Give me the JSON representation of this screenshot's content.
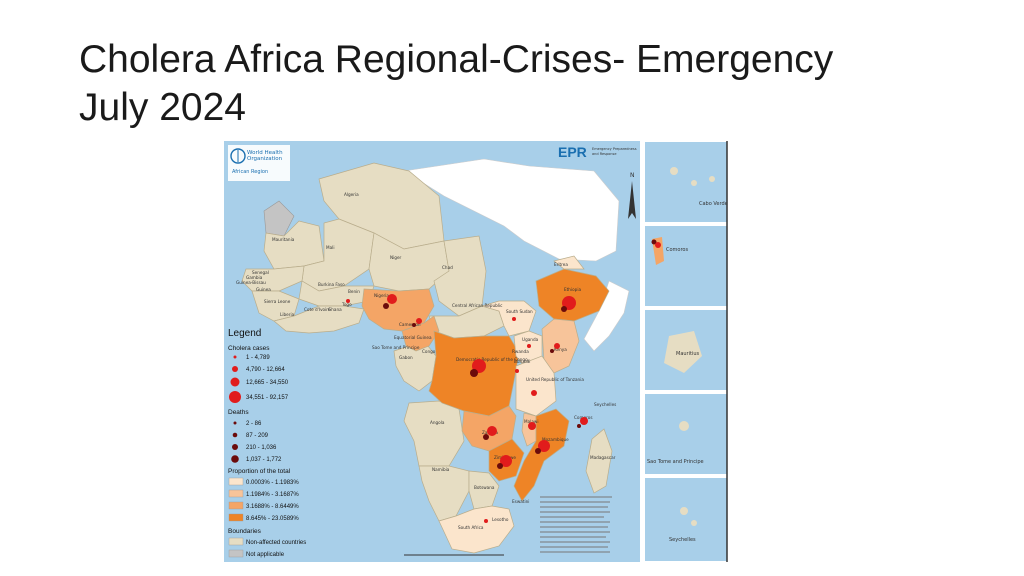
{
  "title": {
    "line1": "Cholera Africa Regional-Crises- Emergency",
    "line2": "July 2024"
  },
  "map": {
    "who_logo": {
      "line1": "World Health",
      "line2": "Organization",
      "region": "African Region"
    },
    "epr_logo": {
      "mark": "EPR",
      "line1": "Emergency Preparedness",
      "line2": "and Response"
    },
    "north_arrow": "N",
    "colors": {
      "sea": "#a8cfe9",
      "affected_1": "#fbe5cc",
      "affected_2": "#f7c49a",
      "affected_3": "#f4a566",
      "affected_4": "#ee8426",
      "non_affected": "#e6ddc3",
      "not_applicable": "#c4c4c4",
      "cases": "#e11c1c",
      "deaths": "#6b0b0b"
    },
    "country_labels": [
      {
        "name": "Algeria"
      },
      {
        "name": "Mauritania"
      },
      {
        "name": "Mali"
      },
      {
        "name": "Niger"
      },
      {
        "name": "Chad"
      },
      {
        "name": "Senegal"
      },
      {
        "name": "Gambia"
      },
      {
        "name": "Guinea-Bissau"
      },
      {
        "name": "Guinea"
      },
      {
        "name": "Burkina Faso"
      },
      {
        "name": "Benin"
      },
      {
        "name": "Sierra Leone"
      },
      {
        "name": "Liberia"
      },
      {
        "name": "Cote d'Ivoire"
      },
      {
        "name": "Ghana"
      },
      {
        "name": "Togo"
      },
      {
        "name": "Nigeria"
      },
      {
        "name": "Cameroon"
      },
      {
        "name": "Central African Republic"
      },
      {
        "name": "South Sudan"
      },
      {
        "name": "Eritrea"
      },
      {
        "name": "Ethiopia"
      },
      {
        "name": "Equatorial Guinea"
      },
      {
        "name": "Gabon"
      },
      {
        "name": "Congo"
      },
      {
        "name": "Sao Tome and Principe"
      },
      {
        "name": "Democratic Republic of the Congo"
      },
      {
        "name": "Uganda"
      },
      {
        "name": "Kenya"
      },
      {
        "name": "Rwanda"
      },
      {
        "name": "Burundi"
      },
      {
        "name": "United Republic of Tanzania"
      },
      {
        "name": "Angola"
      },
      {
        "name": "Zambia"
      },
      {
        "name": "Malawi"
      },
      {
        "name": "Mozambique"
      },
      {
        "name": "Zimbabwe"
      },
      {
        "name": "Namibia"
      },
      {
        "name": "Botswana"
      },
      {
        "name": "Eswatini"
      },
      {
        "name": "Lesotho"
      },
      {
        "name": "South Africa"
      },
      {
        "name": "Madagascar"
      },
      {
        "name": "Comoros"
      },
      {
        "name": "Seychelles"
      }
    ],
    "legend": {
      "title": "Legend",
      "cases_heading": "Cholera cases",
      "cases": [
        "1 - 4,789",
        "4,790 - 12,664",
        "12,665 - 34,550",
        "34,551 - 92,157"
      ],
      "deaths_heading": "Deaths",
      "deaths": [
        "2 - 86",
        "87 - 209",
        "210 - 1,036",
        "1,037 - 1,772"
      ],
      "proportion_heading": "Proportion of the total",
      "proportions": [
        "0.0003% - 1.1983%",
        "1.1984% - 3.1687%",
        "3.1688% - 8.6449%",
        "8.645% - 23.0589%"
      ],
      "boundaries_heading": "Boundaries",
      "boundaries": [
        "Non-affected countries",
        "Not applicable"
      ]
    },
    "insets": [
      {
        "name": "Cabo Verde"
      },
      {
        "name": "Comoros"
      },
      {
        "name": "Mauritius"
      },
      {
        "name": "Sao Tome and Principe"
      },
      {
        "name": "Seychelles"
      }
    ]
  }
}
